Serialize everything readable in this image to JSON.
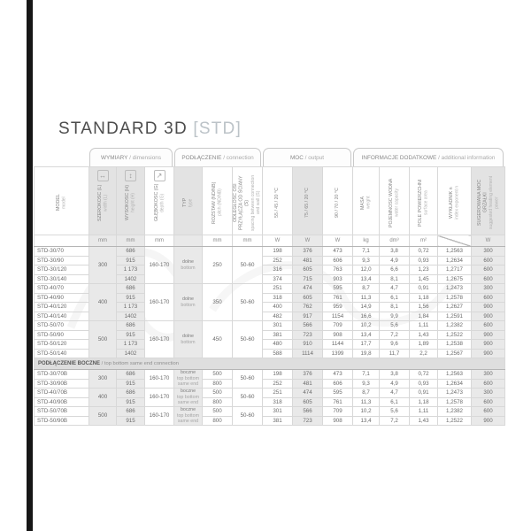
{
  "page": {
    "title_main": "STANDARD 3D",
    "title_tag": "[STD]"
  },
  "table": {
    "groups": [
      {
        "pl": "WYMIARY",
        "en": "dimensions"
      },
      {
        "pl": "PODŁĄCZENIE",
        "en": "connection"
      },
      {
        "pl": "MOC",
        "en": "output"
      },
      {
        "pl": "INFORMACJE DODATKOWE",
        "en": "additional information"
      }
    ],
    "columns": [
      {
        "id": "model",
        "pl": "MODEL",
        "en": "model",
        "unit": ""
      },
      {
        "id": "width",
        "pl": "SZEROKOŚĆ (L)",
        "en": "width (L)",
        "unit": "mm",
        "icon_glyph": "↔",
        "icon_name": "width-arrow-icon"
      },
      {
        "id": "height",
        "pl": "WYSOKOŚĆ (H)",
        "en": "height (H)",
        "unit": "mm",
        "icon_glyph": "↕",
        "icon_name": "height-arrow-icon"
      },
      {
        "id": "depth",
        "pl": "GŁĘBOKOŚĆ (G)",
        "en": "depth (G)",
        "unit": "mm",
        "icon_glyph": "↗",
        "icon_name": "depth-arrow-icon"
      },
      {
        "id": "type",
        "pl": "TYP",
        "en": "type",
        "unit": ""
      },
      {
        "id": "pitch",
        "pl": "ROZSTAW (ND/NB)",
        "en": "pitch (ND/NB)",
        "unit": "mm"
      },
      {
        "id": "wall",
        "pl": "ODLEGŁOŚĆ OSI PRZYŁĄCZA OD ŚCIANY (S)",
        "en": "spacing between connection and wall (S)",
        "unit": "mm"
      },
      {
        "id": "p55",
        "pl": "55 / 45 / 20 °C",
        "en": "",
        "unit": "W"
      },
      {
        "id": "p75",
        "pl": "75 / 65 / 20 °C",
        "en": "",
        "unit": "W"
      },
      {
        "id": "p90",
        "pl": "90 / 70 / 20 °C",
        "en": "",
        "unit": "W"
      },
      {
        "id": "mass",
        "pl": "MASA",
        "en": "weight",
        "unit": "kg"
      },
      {
        "id": "water",
        "pl": "POJEMNOŚĆ WODNA",
        "en": "water capacity",
        "unit": "dm³"
      },
      {
        "id": "area",
        "pl": "POLE POWIERZCHNI",
        "en": "surface area",
        "unit": "m²"
      },
      {
        "id": "exp",
        "pl": "WYKŁADNIK n",
        "en": "index exponent n",
        "unit": "slash"
      },
      {
        "id": "heater",
        "pl": "SUGEROWANA MOC GRZAŁKI",
        "en": "suggested heating element power",
        "unit": "W"
      }
    ],
    "sections": [
      {
        "header": null,
        "blocks": [
          {
            "width": "300",
            "depth": "160-170",
            "type": [
              "dolne",
              "bottom"
            ],
            "pitch": "250",
            "wall": "50-60",
            "rows": [
              {
                "model": "STD-30/70",
                "height": "686",
                "p55": "198",
                "p75": "376",
                "p90": "473",
                "mass": "7,1",
                "water": "3,8",
                "area": "0,72",
                "exp": "1,2563",
                "heater": "300"
              },
              {
                "model": "STD-30/90",
                "height": "915",
                "p55": "252",
                "p75": "481",
                "p90": "606",
                "mass": "9,3",
                "water": "4,9",
                "area": "0,93",
                "exp": "1,2634",
                "heater": "600"
              },
              {
                "model": "STD-30/120",
                "height": "1 173",
                "p55": "316",
                "p75": "605",
                "p90": "763",
                "mass": "12,0",
                "water": "6,6",
                "area": "1,23",
                "exp": "1,2717",
                "heater": "600"
              },
              {
                "model": "STD-30/140",
                "height": "1402",
                "p55": "374",
                "p75": "715",
                "p90": "903",
                "mass": "13,4",
                "water": "8,1",
                "area": "1,45",
                "exp": "1,2675",
                "heater": "600"
              }
            ]
          },
          {
            "width": "400",
            "depth": "160-170",
            "type": [
              "dolne",
              "bottom"
            ],
            "pitch": "350",
            "wall": "50-60",
            "rows": [
              {
                "model": "STD-40/70",
                "height": "686",
                "p55": "251",
                "p75": "474",
                "p90": "595",
                "mass": "8,7",
                "water": "4,7",
                "area": "0,91",
                "exp": "1,2473",
                "heater": "300"
              },
              {
                "model": "STD-40/90",
                "height": "915",
                "p55": "318",
                "p75": "605",
                "p90": "761",
                "mass": "11,3",
                "water": "6,1",
                "area": "1,18",
                "exp": "1,2578",
                "heater": "600"
              },
              {
                "model": "STD-40/120",
                "height": "1 173",
                "p55": "400",
                "p75": "762",
                "p90": "959",
                "mass": "14,9",
                "water": "8,1",
                "area": "1,56",
                "exp": "1,2627",
                "heater": "900"
              },
              {
                "model": "STD-40/140",
                "height": "1402",
                "p55": "482",
                "p75": "917",
                "p90": "1154",
                "mass": "16,6",
                "water": "9,9",
                "area": "1,84",
                "exp": "1,2591",
                "heater": "900"
              }
            ]
          },
          {
            "width": "500",
            "depth": "160-170",
            "type": [
              "dolne",
              "bottom"
            ],
            "pitch": "450",
            "wall": "50-60",
            "rows": [
              {
                "model": "STD-50/70",
                "height": "686",
                "p55": "301",
                "p75": "566",
                "p90": "709",
                "mass": "10,2",
                "water": "5,6",
                "area": "1,11",
                "exp": "1,2382",
                "heater": "600"
              },
              {
                "model": "STD-50/90",
                "height": "915",
                "p55": "381",
                "p75": "723",
                "p90": "908",
                "mass": "13,4",
                "water": "7,2",
                "area": "1,43",
                "exp": "1,2522",
                "heater": "900"
              },
              {
                "model": "STD-50/120",
                "height": "1 173",
                "p55": "480",
                "p75": "910",
                "p90": "1144",
                "mass": "17,7",
                "water": "9,6",
                "area": "1,89",
                "exp": "1,2538",
                "heater": "900"
              },
              {
                "model": "STD-50/140",
                "height": "1402",
                "p55": "588",
                "p75": "1114",
                "p90": "1399",
                "mass": "19,8",
                "water": "11,7",
                "area": "2,2",
                "exp": "1,2567",
                "heater": "900"
              }
            ]
          }
        ]
      },
      {
        "header": {
          "pl": "PODŁĄCZENIE BOCZNE",
          "en": "top bottom same end connection"
        },
        "blocks": [
          {
            "width": "300",
            "depth": "160-170",
            "type": [
              "boczne",
              "top bottom",
              "same end"
            ],
            "wall": "50-60",
            "rows": [
              {
                "model": "STD-30/70B",
                "height": "686",
                "pitch": "500",
                "p55": "198",
                "p75": "376",
                "p90": "473",
                "mass": "7,1",
                "water": "3,8",
                "area": "0,72",
                "exp": "1,2563",
                "heater": "300"
              },
              {
                "model": "STD-30/90B",
                "height": "915",
                "pitch": "800",
                "p55": "252",
                "p75": "481",
                "p90": "606",
                "mass": "9,3",
                "water": "4,9",
                "area": "0,93",
                "exp": "1,2634",
                "heater": "600"
              }
            ]
          },
          {
            "width": "400",
            "depth": "160-170",
            "type": [
              "boczne",
              "top bottom",
              "same end"
            ],
            "wall": "50-60",
            "rows": [
              {
                "model": "STD-40/70B",
                "height": "686",
                "pitch": "500",
                "p55": "251",
                "p75": "474",
                "p90": "595",
                "mass": "8,7",
                "water": "4,7",
                "area": "0,91",
                "exp": "1,2473",
                "heater": "300"
              },
              {
                "model": "STD-40/90B",
                "height": "915",
                "pitch": "800",
                "p55": "318",
                "p75": "605",
                "p90": "761",
                "mass": "11,3",
                "water": "6,1",
                "area": "1,18",
                "exp": "1,2578",
                "heater": "600"
              }
            ]
          },
          {
            "width": "500",
            "depth": "160-170",
            "type": [
              "boczne",
              "top bottom",
              "same end"
            ],
            "wall": "50-60",
            "rows": [
              {
                "model": "STD-50/70B",
                "height": "686",
                "pitch": "500",
                "p55": "301",
                "p75": "566",
                "p90": "709",
                "mass": "10,2",
                "water": "5,6",
                "area": "1,11",
                "exp": "1,2382",
                "heater": "600"
              },
              {
                "model": "STD-50/90B",
                "height": "915",
                "pitch": "800",
                "p55": "381",
                "p75": "723",
                "p90": "908",
                "mass": "13,4",
                "water": "7,2",
                "area": "1,43",
                "exp": "1,2522",
                "heater": "900"
              }
            ]
          }
        ]
      }
    ]
  }
}
